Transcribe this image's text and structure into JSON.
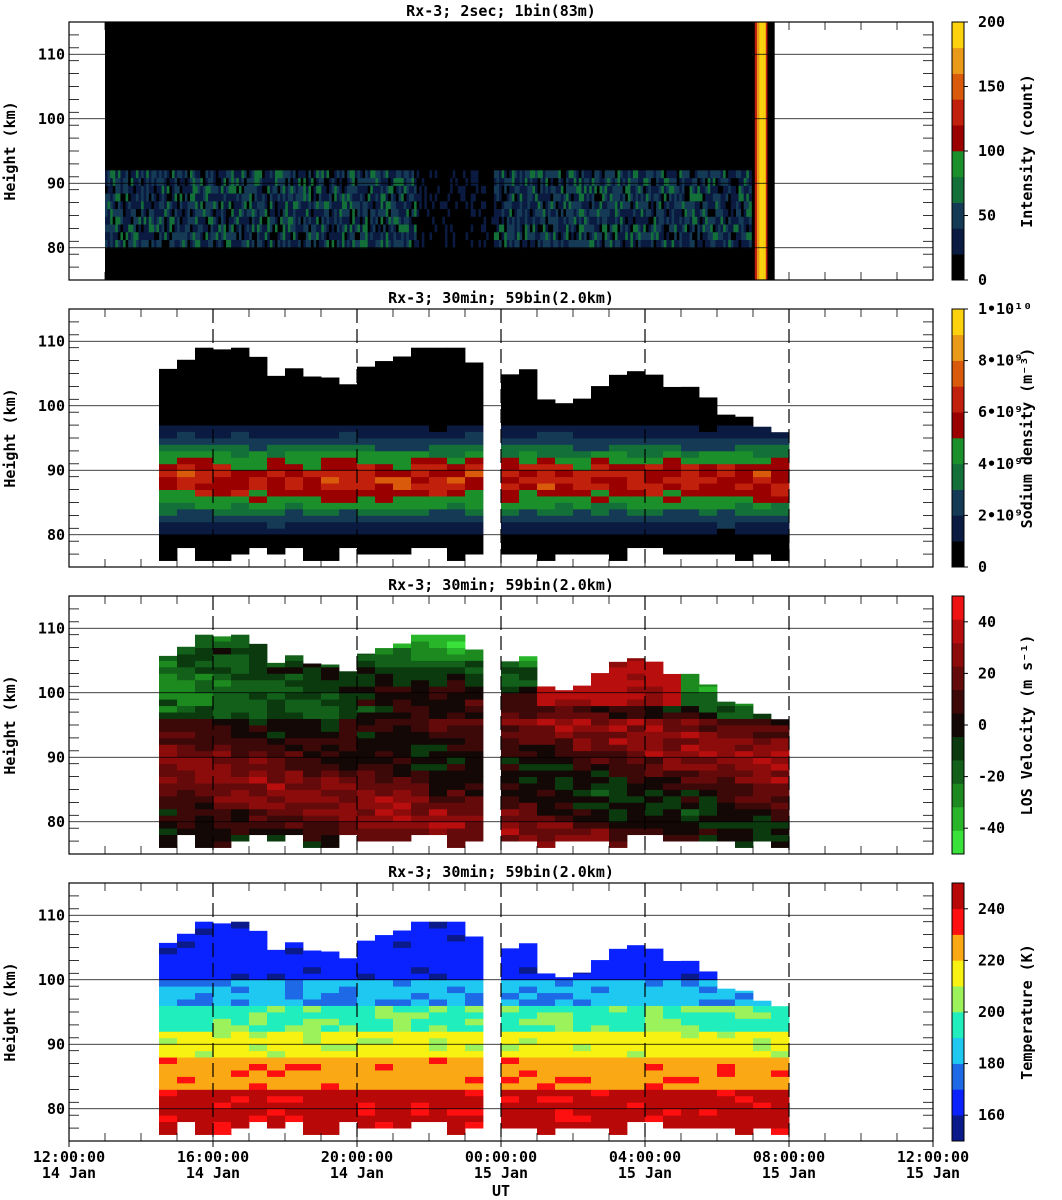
{
  "chart_data": [
    {
      "type": "heatmap",
      "title": "Rx-3;  2sec; 1bin(83m)",
      "ylabel": "Height (km)",
      "ylim": [
        75,
        115
      ],
      "y_ticks": [
        "80",
        "90",
        "100",
        "110"
      ],
      "colorbar": {
        "label": "Intensity (count)",
        "range": [
          0,
          200
        ],
        "tick_labels": [
          "0",
          "50",
          "100",
          "150",
          "200"
        ],
        "colors": [
          "#000000",
          "#0a1a40",
          "#143a55",
          "#137038",
          "#1a8f2a",
          "#9a0000",
          "#c0200c",
          "#d85a0a",
          "#e89a18",
          "#fcd20e"
        ]
      },
      "layer": {
        "x_start_hr": 1.0,
        "x_end_hr": 19.6,
        "low_km": 80,
        "high_km": 92,
        "peak_intensity": 70
      }
    },
    {
      "type": "heatmap",
      "title": "Rx-3; 30min; 59bin(2.0km)",
      "ylabel": "Height (km)",
      "ylim": [
        75,
        115
      ],
      "y_ticks": [
        "80",
        "90",
        "100",
        "110"
      ],
      "colorbar": {
        "label": "Sodium density (m⁻³)",
        "range": [
          0,
          10000000000
        ],
        "tick_labels": [
          "0",
          "2•10⁹",
          "4•10⁹",
          "6•10⁹",
          "8•10⁹",
          "1•10¹⁰"
        ],
        "colors": [
          "#000000",
          "#0a1a40",
          "#143a55",
          "#137038",
          "#1a8f2a",
          "#9a0000",
          "#c0200c",
          "#d85a0a",
          "#e89a18",
          "#fcd20e"
        ]
      },
      "layer": {
        "peak_value": 6500000000,
        "peak_height_km": 88
      }
    },
    {
      "type": "heatmap",
      "title": "Rx-3; 30min; 59bin(2.0km)",
      "ylabel": "Height (km)",
      "ylim": [
        75,
        115
      ],
      "y_ticks": [
        "80",
        "90",
        "100",
        "110"
      ],
      "colorbar": {
        "label": "LOS Velocity (m s⁻¹)",
        "range": [
          -50,
          50
        ],
        "tick_labels": [
          "-40",
          "-20",
          "0",
          "20",
          "40"
        ],
        "colors": [
          "#39e13a",
          "#29b52a",
          "#1c8a1e",
          "#12601a",
          "#0a3a0e",
          "#140806",
          "#3c0808",
          "#640a0a",
          "#8c0c0c",
          "#b80e0e",
          "#ee1212"
        ]
      }
    },
    {
      "type": "heatmap",
      "title": "Rx-3; 30min; 59bin(2.0km)",
      "ylabel": "Height (km)",
      "xlabel": "UT",
      "ylim": [
        75,
        115
      ],
      "y_ticks": [
        "80",
        "90",
        "100",
        "110"
      ],
      "colorbar": {
        "label": "Temperature (K)",
        "range": [
          150,
          250
        ],
        "tick_labels": [
          "160",
          "180",
          "200",
          "220",
          "240"
        ],
        "colors": [
          "#0a1a8a",
          "#0a22ff",
          "#1e6ae6",
          "#1fc8f0",
          "#21eebd",
          "#9cf25a",
          "#f8f212",
          "#fba815",
          "#ff1010",
          "#b80808"
        ]
      }
    }
  ],
  "time_axis": {
    "ticks": [
      {
        "time": "12:00:00",
        "date": "14 Jan"
      },
      {
        "time": "16:00:00",
        "date": "14 Jan"
      },
      {
        "time": "20:00:00",
        "date": "14 Jan"
      },
      {
        "time": "00:00:00",
        "date": "15 Jan"
      },
      {
        "time": "04:00:00",
        "date": "15 Jan"
      },
      {
        "time": "08:00:00",
        "date": "15 Jan"
      },
      {
        "time": "12:00:00",
        "date": "15 Jan"
      }
    ],
    "xlim": [
      "2015-01-14T12:00",
      "2015-01-15T12:00"
    ],
    "data_start": "2015-01-14T14:30",
    "data_end": "2015-01-15T08:00",
    "gap": [
      "2015-01-14T23:30",
      "2015-01-15T00:00"
    ]
  }
}
